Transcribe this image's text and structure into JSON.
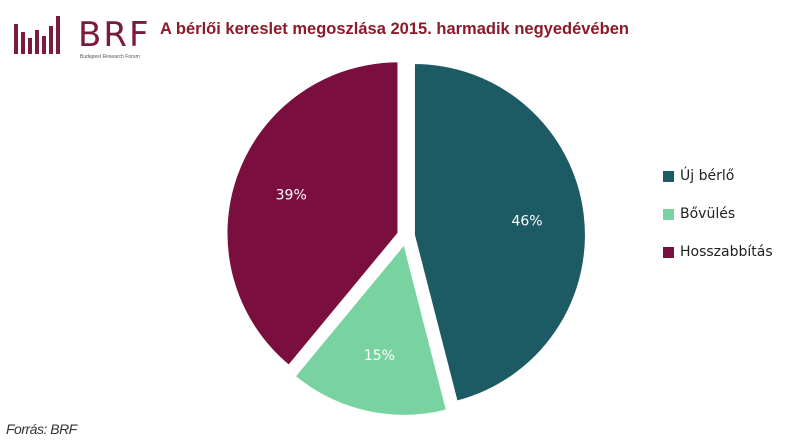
{
  "logo": {
    "text": "BRF",
    "subtitle": "Budapest Research Forum",
    "color": "#7a1a3c"
  },
  "title": "A bérlői kereslet megoszlása 2015. harmadik negyedévében",
  "source": "Forrás: BRF",
  "chart_data": {
    "type": "pie",
    "title": "A bérlői kereslet megoszlása 2015. harmadik negyedévében",
    "legend_position": "right",
    "slices": [
      {
        "label": "Új bérlő",
        "value": 46,
        "display": "46%",
        "color": "#1c5b63"
      },
      {
        "label": "Bővülés",
        "value": 15,
        "display": "15%",
        "color": "#79d3a0"
      },
      {
        "label": "Hosszabbítás",
        "value": 39,
        "display": "39%",
        "color": "#7a0f3f"
      }
    ]
  }
}
